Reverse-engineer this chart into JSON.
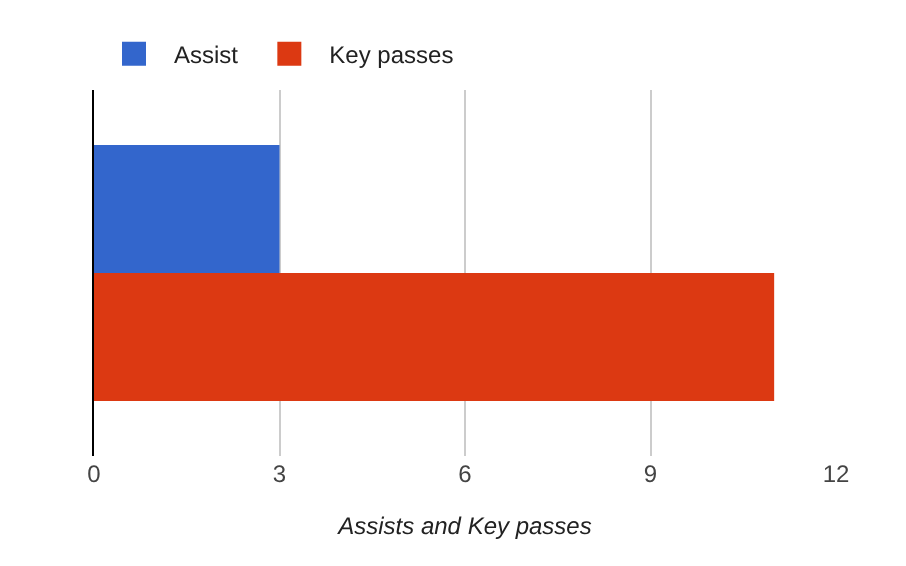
{
  "chart_data": {
    "type": "bar",
    "orientation": "horizontal",
    "categories": [
      null
    ],
    "series": [
      {
        "name": "Assist",
        "color": "#3366cc",
        "values": [
          3
        ]
      },
      {
        "name": "Key passes",
        "color": "#dc3912",
        "values": [
          11
        ]
      }
    ],
    "xlabel": "Assists and Key passes",
    "xlim": [
      0,
      12
    ],
    "xticks": [
      0,
      3,
      6,
      9,
      12
    ],
    "grid": "x",
    "legend": "top left"
  }
}
